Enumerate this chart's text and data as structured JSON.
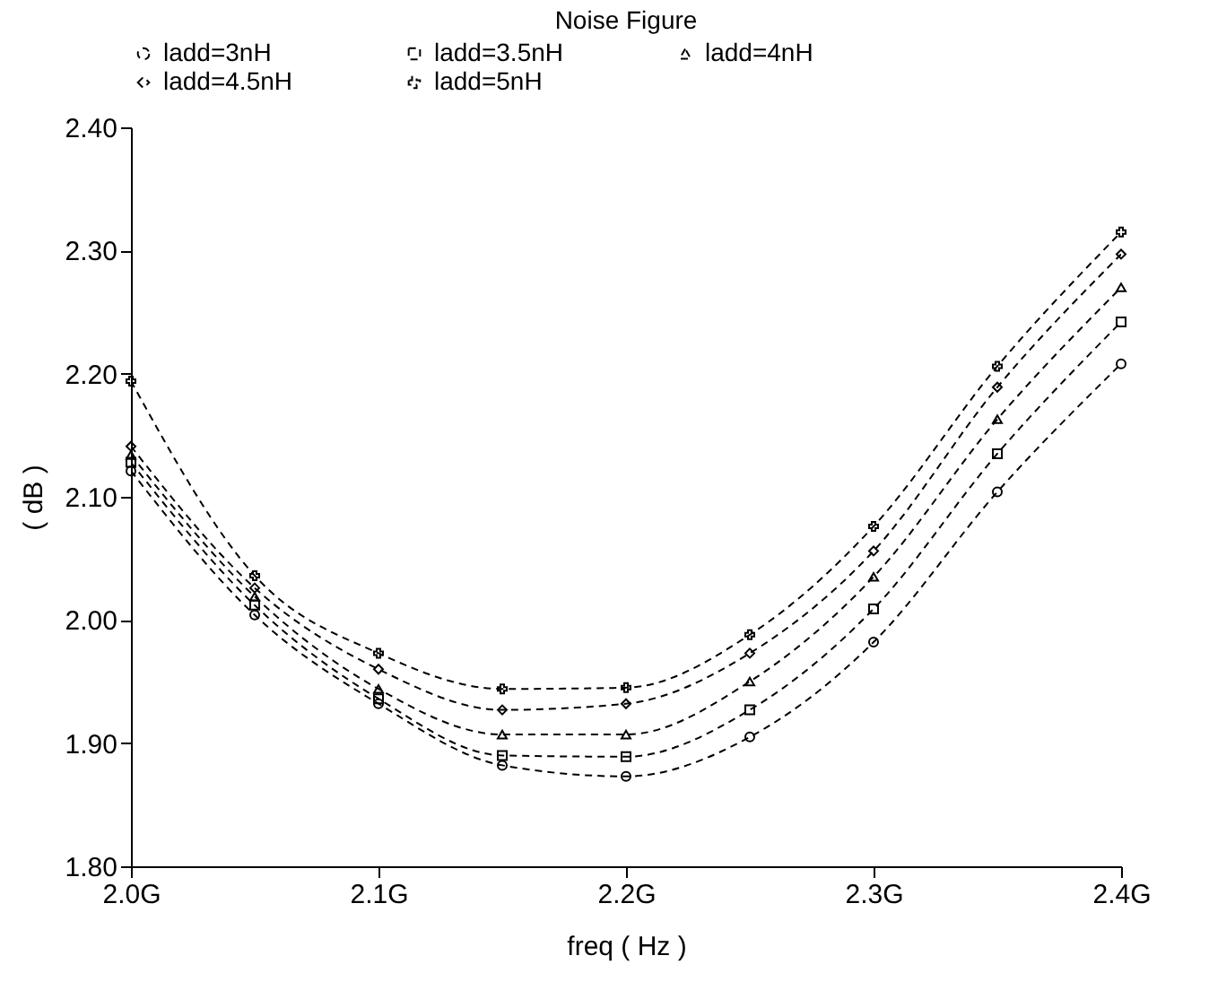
{
  "chart_data": {
    "type": "line",
    "title": "Noise Figure",
    "xlabel": "freq ( Hz )",
    "ylabel": "( dB )",
    "x": [
      2.0,
      2.05,
      2.1,
      2.15,
      2.2,
      2.25,
      2.3,
      2.35,
      2.4
    ],
    "xlim": [
      2.0,
      2.4
    ],
    "xticks": [
      {
        "value": 2.0,
        "label": "2.0G"
      },
      {
        "value": 2.1,
        "label": "2.1G"
      },
      {
        "value": 2.2,
        "label": "2.2G"
      },
      {
        "value": 2.3,
        "label": "2.3G"
      },
      {
        "value": 2.4,
        "label": "2.4G"
      }
    ],
    "ylim": [
      1.8,
      2.4
    ],
    "yticks": [
      {
        "value": 1.8,
        "label": "1.80"
      },
      {
        "value": 1.9,
        "label": "1.90"
      },
      {
        "value": 2.0,
        "label": "2.00"
      },
      {
        "value": 2.1,
        "label": "2.10"
      },
      {
        "value": 2.2,
        "label": "2.20"
      },
      {
        "value": 2.3,
        "label": "2.30"
      },
      {
        "value": 2.4,
        "label": "2.40"
      }
    ],
    "legend": "top",
    "line_style": "dashed",
    "grid": false,
    "series": [
      {
        "name": "ladd=3nH",
        "color": "#000000",
        "marker": "circle",
        "values": [
          2.121,
          2.004,
          1.932,
          1.882,
          1.873,
          1.905,
          1.982,
          2.104,
          2.208
        ]
      },
      {
        "name": "ladd=3.5nH",
        "color": "#000000",
        "marker": "square",
        "values": [
          2.128,
          2.012,
          1.936,
          1.89,
          1.889,
          1.927,
          2.009,
          2.135,
          2.242
        ]
      },
      {
        "name": "ladd=4nH",
        "color": "#000000",
        "marker": "triangle",
        "values": [
          2.134,
          2.019,
          1.944,
          1.907,
          1.907,
          1.95,
          2.035,
          2.163,
          2.27
        ]
      },
      {
        "name": "ladd=4.5nH",
        "color": "#000000",
        "marker": "diamond",
        "values": [
          2.141,
          2.026,
          1.96,
          1.927,
          1.932,
          1.973,
          2.056,
          2.189,
          2.297
        ]
      },
      {
        "name": "ladd=5nH",
        "color": "#000000",
        "marker": "cross",
        "values": [
          2.194,
          2.036,
          1.973,
          1.944,
          1.945,
          1.988,
          2.076,
          2.206,
          2.315
        ]
      }
    ]
  }
}
